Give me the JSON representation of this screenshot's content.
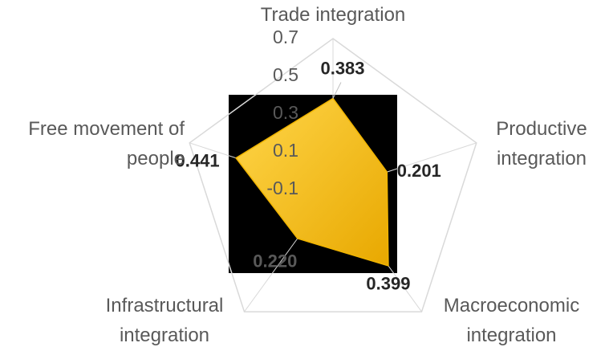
{
  "chart_data": {
    "type": "radar",
    "categories": [
      "Trade integration",
      "Productive integration",
      "Macroeconomic integration",
      "Infrastructural integration",
      "Free movement of people"
    ],
    "values": [
      0.383,
      0.201,
      0.399,
      0.22,
      0.441
    ],
    "value_labels": [
      "0.383",
      "0.201",
      "0.399",
      "0.220",
      "0.441"
    ],
    "color": "#ffc000",
    "ylim": [
      -0.1,
      0.7
    ],
    "yticks": [
      -0.1,
      0.1,
      0.3,
      0.5,
      0.7
    ]
  }
}
